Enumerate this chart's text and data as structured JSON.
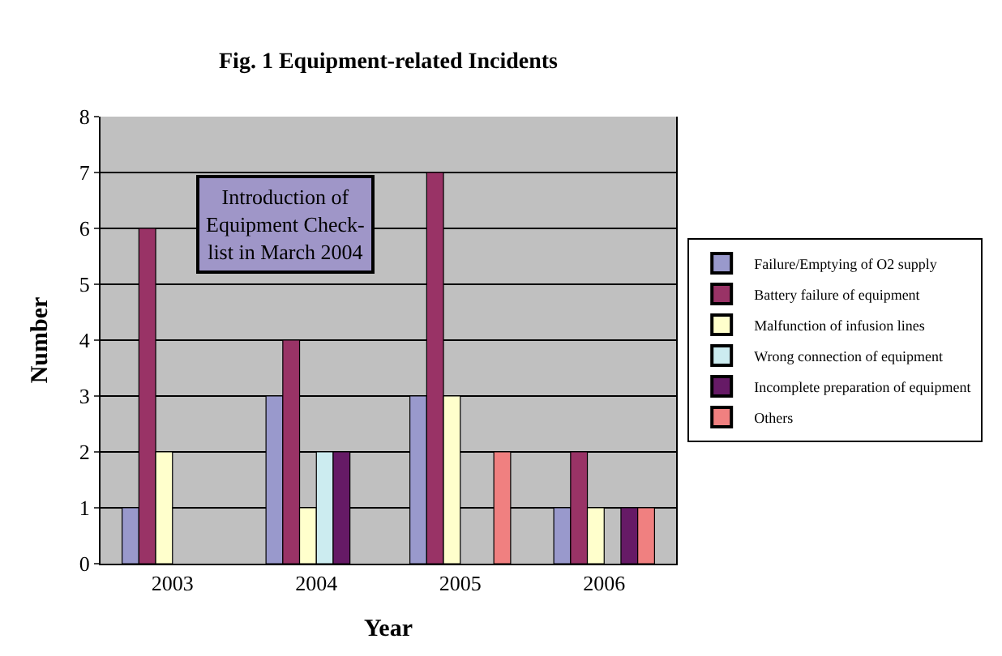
{
  "chart_data": {
    "type": "bar",
    "title": "Fig. 1 Equipment-related Incidents",
    "xlabel": "Year",
    "ylabel": "Number",
    "categories": [
      "2003",
      "2004",
      "2005",
      "2006"
    ],
    "series": [
      {
        "name": "Failure/Emptying of O2 supply",
        "color": "#9999cc",
        "values": [
          1,
          3,
          3,
          1
        ]
      },
      {
        "name": "Battery failure of equipment",
        "color": "#993366",
        "values": [
          6,
          4,
          7,
          2
        ]
      },
      {
        "name": "Malfunction of infusion lines",
        "color": "#ffffcc",
        "values": [
          2,
          1,
          3,
          1
        ]
      },
      {
        "name": "Wrong connection of equipment",
        "color": "#ccecf0",
        "values": [
          null,
          2,
          null,
          null
        ]
      },
      {
        "name": "Incomplete preparation of equipment",
        "color": "#661a66",
        "values": [
          null,
          2,
          null,
          1
        ]
      },
      {
        "name": "Others",
        "color": "#f08080",
        "values": [
          null,
          null,
          2,
          1
        ]
      }
    ],
    "ylim": [
      0,
      8
    ],
    "yticks": [
      0,
      1,
      2,
      3,
      4,
      5,
      6,
      7,
      8
    ],
    "grid": "y",
    "legend": "right",
    "annotations": [
      "Introduction of\nEquipment Check-\nlist in March 2004"
    ]
  }
}
